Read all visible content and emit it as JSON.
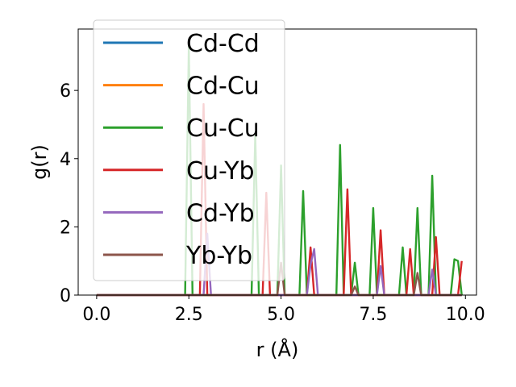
{
  "chart_data": {
    "type": "line",
    "title": "",
    "xlabel": "r (Å)",
    "ylabel": "g(r)",
    "xlim": [
      -0.5,
      10.3
    ],
    "ylim": [
      0,
      7.8
    ],
    "xticks": [
      0.0,
      2.5,
      5.0,
      7.5,
      10.0
    ],
    "xtick_labels": [
      "0.0",
      "2.5",
      "5.0",
      "7.5",
      "10.0"
    ],
    "yticks": [
      0,
      2,
      4,
      6
    ],
    "ytick_labels": [
      "0",
      "2",
      "4",
      "6"
    ],
    "grid": false,
    "legend_position": "upper-left",
    "series": [
      {
        "name": "Cd-Cd",
        "color": "#1f77b4",
        "x": [
          0,
          9.9
        ],
        "y": [
          0,
          0
        ]
      },
      {
        "name": "Cd-Cu",
        "color": "#ff7f0e",
        "x": [
          0,
          9.9
        ],
        "y": [
          0,
          0
        ]
      },
      {
        "name": "Cu-Cu",
        "color": "#2ca02c",
        "x": [
          0,
          2.4,
          2.5,
          2.6,
          4.2,
          4.3,
          4.4,
          4.9,
          5.0,
          5.1,
          5.5,
          5.6,
          5.7,
          6.5,
          6.6,
          6.7,
          6.9,
          7.0,
          7.1,
          7.4,
          7.5,
          7.6,
          8.2,
          8.3,
          8.4,
          8.6,
          8.7,
          8.8,
          9.0,
          9.1,
          9.2,
          9.6,
          9.7,
          9.8,
          9.9
        ],
        "y": [
          0,
          0,
          7.3,
          0,
          0,
          4.7,
          0,
          0,
          3.8,
          0,
          0,
          3.05,
          0,
          0,
          4.4,
          0,
          0,
          0.95,
          0,
          0,
          2.55,
          0,
          0,
          1.4,
          0,
          0,
          2.55,
          0,
          0,
          3.5,
          0,
          0,
          1.05,
          1.0,
          0
        ]
      },
      {
        "name": "Cu-Yb",
        "color": "#d62728",
        "x": [
          0,
          2.8,
          2.9,
          3.0,
          4.5,
          4.6,
          4.7,
          5.7,
          5.8,
          5.9,
          6.7,
          6.8,
          6.9,
          7.6,
          7.7,
          7.8,
          8.4,
          8.5,
          8.6,
          9.1,
          9.2,
          9.3,
          9.8,
          9.9
        ],
        "y": [
          0,
          0,
          5.6,
          0,
          0,
          3.0,
          0,
          0,
          1.4,
          0,
          0,
          3.1,
          0,
          0,
          1.9,
          0,
          0,
          1.35,
          0,
          0,
          1.7,
          0,
          0,
          1.0
        ]
      },
      {
        "name": "Cd-Yb",
        "color": "#9467bd",
        "x": [
          0,
          2.9,
          3.0,
          3.1,
          5.7,
          5.8,
          5.9,
          6.0,
          7.6,
          7.7,
          7.8,
          9.0,
          9.1,
          9.2,
          9.9
        ],
        "y": [
          0,
          0,
          1.8,
          0,
          0,
          0.9,
          1.35,
          0,
          0,
          0.85,
          0,
          0,
          0.75,
          0,
          0
        ]
      },
      {
        "name": "Yb-Yb",
        "color": "#8c564b",
        "x": [
          0,
          4.9,
          5.0,
          5.1,
          6.9,
          7.0,
          7.1,
          8.6,
          8.7,
          8.8,
          9.9
        ],
        "y": [
          0,
          0,
          0.95,
          0,
          0,
          0.25,
          0,
          0,
          0.65,
          0,
          0
        ]
      }
    ]
  }
}
